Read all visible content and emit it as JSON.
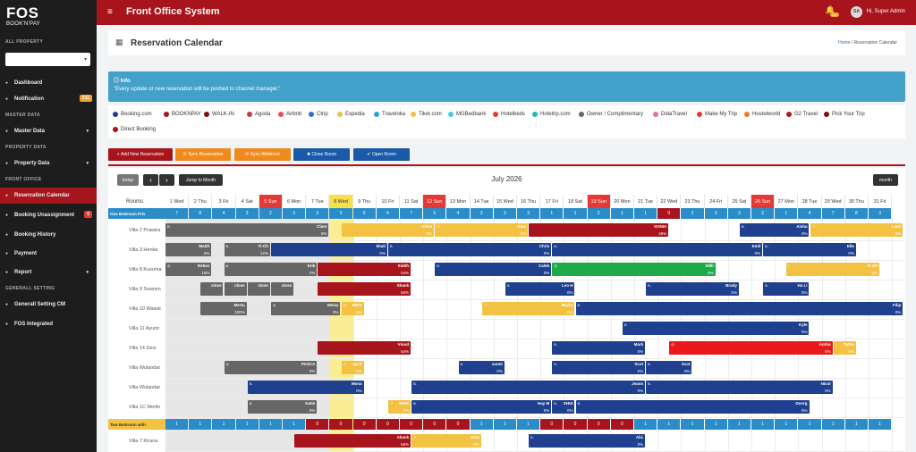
{
  "app": {
    "logo_top": "FOS",
    "logo_bottom": "BOOK'N'PAY",
    "title": "Front Office System",
    "bell_count": "211",
    "avatar": "SA",
    "user": "Hi, Super Admin"
  },
  "sidebar": {
    "all_property": "ALL PROPERTY",
    "master_data": "MASTER DATA",
    "property_data": "PROPERTY DATA",
    "front_office": "FRONT OFFICE",
    "general_setting": "GENERALL SETTING",
    "items": [
      {
        "label": "Dashboard",
        "icon": "dashboard-icon",
        "top": 84
      },
      {
        "label": "Notification",
        "icon": "bell-icon",
        "top": 102,
        "badge": "211"
      },
      {
        "label": "Master Data",
        "icon": "database-icon",
        "top": 138,
        "arrow": "▾"
      },
      {
        "label": "Property Data",
        "icon": "building-icon",
        "top": 174,
        "arrow": "▾"
      },
      {
        "label": "Reservation Calendar",
        "icon": "calendar-icon",
        "top": 210,
        "active": true
      },
      {
        "label": "Booking Unassignment",
        "icon": "booking-icon",
        "top": 232,
        "badge": "0",
        "badgered": true
      },
      {
        "label": "Booking History",
        "icon": "history-icon",
        "top": 254
      },
      {
        "label": "Payment",
        "icon": "payment-icon",
        "top": 275
      },
      {
        "label": "Report",
        "icon": "report-icon",
        "top": 296,
        "arrow": "▾"
      },
      {
        "label": "Generall Setting CM",
        "icon": "gear-icon",
        "top": 332
      },
      {
        "label": "FOS Integrated",
        "icon": "integration-icon",
        "top": 354
      }
    ]
  },
  "page": {
    "title": "Reservation Calendar",
    "crumb_home": "Home",
    "crumb_sep": "/",
    "crumb_current": "Reservation Calendar"
  },
  "info": {
    "title": "Info",
    "message": "\"Every update or new reservation will be pushed to channel manager.\""
  },
  "legend": [
    {
      "label": "Booking.com",
      "color": "#1f3f8f"
    },
    {
      "label": "BOOKNPAY",
      "color": "#a8141c"
    },
    {
      "label": "WALK-IN",
      "color": "#7a1010"
    },
    {
      "label": "Agoda",
      "color": "#cc3b3b"
    },
    {
      "label": "Airbnb",
      "color": "#e8505b"
    },
    {
      "label": "Ctrip",
      "color": "#2c6fd1"
    },
    {
      "label": "Expedia",
      "color": "#e8c34a"
    },
    {
      "label": "Traveloka",
      "color": "#2ba3e0"
    },
    {
      "label": "Tiket.com",
      "color": "#f3c242"
    },
    {
      "label": "MGBedbank",
      "color": "#46c7e8"
    },
    {
      "label": "Hotelbeds",
      "color": "#e03a3a"
    },
    {
      "label": "Hotelrip.com",
      "color": "#21b7b7"
    },
    {
      "label": "Owner / Complimentary",
      "color": "#666666"
    },
    {
      "label": "DidaTravel",
      "color": "#e86f9c"
    },
    {
      "label": "Make My Trip",
      "color": "#e53935"
    },
    {
      "label": "Hostelworld",
      "color": "#f07a2c"
    },
    {
      "label": "G2 Travel",
      "color": "#b01818"
    },
    {
      "label": "Pick Your Trip",
      "color": "#7a1010"
    },
    {
      "label": "Direct Booking",
      "color": "#a8141c"
    }
  ],
  "buttons": {
    "add": "Add New Reservation",
    "sync_res": "Sync Reservation",
    "sync_allot": "Sync Allotment",
    "close_room": "Close Room",
    "open_room": "Open Room"
  },
  "calendar": {
    "today": "today",
    "prev": "‹",
    "next": "›",
    "jump": "Jump to Month",
    "month_title": "July 2026",
    "view": "month",
    "rooms_header": "Rooms",
    "days": [
      "1 Wed",
      "2 Thu",
      "3 Fri",
      "4 Sat",
      "5 Sun",
      "6 Mon",
      "7 Tue",
      "8 Wed",
      "9 Thu",
      "10 Fri",
      "11 Sat",
      "12 Sun",
      "13 Mon",
      "14 Tue",
      "15 Wed",
      "16 Thu",
      "17 Fri",
      "18 Sat",
      "19 Sun",
      "20 Mon",
      "21 Tue",
      "22 Wed",
      "23 Thu",
      "24 Fri",
      "25 Sat",
      "26 Sun",
      "27 Mon",
      "28 Tue",
      "29 Wed",
      "30 Thu",
      "31 Fri"
    ],
    "sundays": [
      4,
      11,
      18,
      25
    ],
    "today_index": 7,
    "groups": [
      {
        "label": "One Bedroom Priv",
        "counts": [
          "7",
          "8",
          "4",
          "3",
          "2",
          "3",
          "3",
          "3",
          "5",
          "4",
          "7",
          "5",
          "4",
          "3",
          "3",
          "3",
          "1",
          "1",
          "2",
          "1",
          "1",
          "0",
          "2",
          "3",
          "3",
          "2",
          "1",
          "4",
          "7",
          "8",
          "3"
        ],
        "zero_color": "#a8141c"
      },
      {
        "label": "Two Bedroom with",
        "counts": [
          "1",
          "1",
          "1",
          "1",
          "1",
          "1",
          "0",
          "0",
          "0",
          "0",
          "0",
          "0",
          "0",
          "1",
          "1",
          "1",
          "0",
          "0",
          "0",
          "0",
          "1",
          "1",
          "1",
          "1",
          "1",
          "1",
          "1",
          "1",
          "1",
          "1",
          "1"
        ],
        "zero_color": "#a8141c",
        "group2": true
      }
    ],
    "rooms": [
      "Villa 2 Prawira",
      "Villa 3 Henka",
      "Villa 8 Kusuma",
      "Villa 9 Suwism",
      "Villa 10 Wasist",
      "Villa 11 Ayunir",
      "Villa 14 Devi",
      "Villa Wulandar",
      "Villa Wulandar",
      "Villa 1C Merlin",
      "Villa 7 Kirana"
    ],
    "bookings": [
      {
        "row": 0,
        "start": 0,
        "end": 7,
        "name": "Clare",
        "pct": "0%",
        "color": "#666666",
        "st": "B."
      },
      {
        "row": 0,
        "start": 7,
        "end": 11,
        "name": "Alexe",
        "pct": "0%",
        "color": "#f3c242",
        "st": "i"
      },
      {
        "row": 0,
        "start": 11,
        "end": 15,
        "name": "Dam",
        "pct": "0%",
        "color": "#f3c242",
        "st": "↗"
      },
      {
        "row": 0,
        "start": 15,
        "end": 21,
        "name": "SONIA",
        "pct": "46%",
        "color": "#a8141c",
        "st": ""
      },
      {
        "row": 0,
        "start": 24,
        "end": 27,
        "name": "Aisha",
        "pct": "0%",
        "color": "#1f3f8f",
        "st": "B."
      },
      {
        "row": 0,
        "start": 27,
        "end": 31,
        "name": "Lesh",
        "pct": "0%",
        "color": "#f3c242",
        "st": "↗"
      },
      {
        "row": 1,
        "start": 0,
        "end": 2,
        "name": "Matth",
        "pct": "0%",
        "color": "#666666",
        "st": ""
      },
      {
        "row": 1,
        "start": 2,
        "end": 4,
        "name": "Yi-Ch",
        "pct": "12%",
        "color": "#666666",
        "st": "B."
      },
      {
        "row": 1,
        "start": 4,
        "end": 9,
        "name": "khali",
        "pct": "0%",
        "color": "#1f3f8f",
        "st": ""
      },
      {
        "row": 1,
        "start": 9,
        "end": 16,
        "name": "Chris",
        "pct": "0%",
        "color": "#1f3f8f",
        "st": "B."
      },
      {
        "row": 1,
        "start": 16,
        "end": 25,
        "name": "Emil",
        "pct": "0%",
        "color": "#1f3f8f",
        "st": "B."
      },
      {
        "row": 1,
        "start": 25,
        "end": 29,
        "name": "Elle",
        "pct": "0%",
        "color": "#1f3f8f",
        "st": "B."
      },
      {
        "row": 2,
        "start": 0,
        "end": 2,
        "name": "Rebec",
        "pct": "15%",
        "color": "#666666",
        "st": "◎"
      },
      {
        "row": 2,
        "start": 2,
        "end": 6,
        "name": "Erik",
        "pct": "2%",
        "color": "#666666",
        "st": "B."
      },
      {
        "row": 2,
        "start": 6,
        "end": 10,
        "name": "Siddh",
        "pct": "54%",
        "color": "#a8141c",
        "st": ""
      },
      {
        "row": 2,
        "start": 11,
        "end": 16,
        "name": "Caleb",
        "pct": "0%",
        "color": "#1f3f8f",
        "st": "B."
      },
      {
        "row": 2,
        "start": 16,
        "end": 23,
        "name": "Willi",
        "pct": "0%",
        "color": "#1faa4a",
        "st": "◎"
      },
      {
        "row": 2,
        "start": 26,
        "end": 30,
        "name": "YI ZO",
        "pct": "0%",
        "color": "#f3c242",
        "st": "i"
      },
      {
        "row": 3,
        "start": 1,
        "end": 2,
        "name": "close",
        "pct": "",
        "color": "#666666",
        "st": ""
      },
      {
        "row": 3,
        "start": 2,
        "end": 3,
        "name": "close",
        "pct": "",
        "color": "#666666",
        "st": ""
      },
      {
        "row": 3,
        "start": 3,
        "end": 4,
        "name": "close",
        "pct": "",
        "color": "#666666",
        "st": ""
      },
      {
        "row": 3,
        "start": 4,
        "end": 5,
        "name": "close",
        "pct": "",
        "color": "#666666",
        "st": ""
      },
      {
        "row": 3,
        "start": 6,
        "end": 10,
        "name": "Shank",
        "pct": "50%",
        "color": "#a8141c",
        "st": ""
      },
      {
        "row": 3,
        "start": 14,
        "end": 17,
        "name": "Leo H",
        "pct": "0%",
        "color": "#1f3f8f",
        "st": "B."
      },
      {
        "row": 3,
        "start": 20,
        "end": 24,
        "name": "Brady",
        "pct": "0%",
        "color": "#1f3f8f",
        "st": "B."
      },
      {
        "row": 3,
        "start": 25,
        "end": 27,
        "name": "Ha Li",
        "pct": "0%",
        "color": "#1f3f8f",
        "st": "B."
      },
      {
        "row": 4,
        "start": 1,
        "end": 3,
        "name": "Mertu",
        "pct": "100%",
        "color": "#666666",
        "st": ""
      },
      {
        "row": 4,
        "start": 4,
        "end": 7,
        "name": "Meisy",
        "pct": "0%",
        "color": "#666666",
        "st": "◎"
      },
      {
        "row": 4,
        "start": 7,
        "end": 8,
        "name": "Mehr",
        "pct": "0%",
        "color": "#f3c242",
        "st": "◎"
      },
      {
        "row": 4,
        "start": 13,
        "end": 17,
        "name": "Micha",
        "pct": "0%",
        "color": "#f3c242",
        "st": "↗"
      },
      {
        "row": 4,
        "start": 17,
        "end": 31,
        "name": "Filip",
        "pct": "0%",
        "color": "#1f3f8f",
        "st": "B."
      },
      {
        "row": 5,
        "start": 19,
        "end": 27,
        "name": "Kyle",
        "pct": "0%",
        "color": "#1f3f8f",
        "st": "B."
      },
      {
        "row": 6,
        "start": 6,
        "end": 10,
        "name": "Vinod",
        "pct": "54%",
        "color": "#a8141c",
        "st": ""
      },
      {
        "row": 6,
        "start": 16,
        "end": 20,
        "name": "Mark",
        "pct": "0%",
        "color": "#1f3f8f",
        "st": "B."
      },
      {
        "row": 6,
        "start": 21,
        "end": 28,
        "name": "Antho",
        "pct": "0%",
        "color": "#e8181c",
        "st": "◎"
      },
      {
        "row": 6,
        "start": 28,
        "end": 29,
        "name": "Tutha",
        "pct": "0%",
        "color": "#f3c242",
        "st": "i"
      },
      {
        "row": 7,
        "start": 2,
        "end": 6,
        "name": "PASCA",
        "pct": "0%",
        "color": "#666666",
        "st": "◎"
      },
      {
        "row": 7,
        "start": 7,
        "end": 8,
        "name": "ayi ti",
        "pct": "0%",
        "color": "#f3c242",
        "st": "↗"
      },
      {
        "row": 7,
        "start": 12,
        "end": 14,
        "name": "sumit",
        "pct": "0%",
        "color": "#1f3f8f",
        "st": "B."
      },
      {
        "row": 7,
        "start": 16,
        "end": 20,
        "name": "Scot",
        "pct": "0%",
        "color": "#1f3f8f",
        "st": "B."
      },
      {
        "row": 7,
        "start": 20,
        "end": 22,
        "name": "Scot",
        "pct": "0%",
        "color": "#1f3f8f",
        "st": "B."
      },
      {
        "row": 8,
        "start": 3,
        "end": 8,
        "name": "Mona",
        "pct": "0%",
        "color": "#1f3f8f",
        "st": "B."
      },
      {
        "row": 8,
        "start": 10,
        "end": 20,
        "name": "Jeann",
        "pct": "0%",
        "color": "#1f3f8f",
        "st": "B."
      },
      {
        "row": 8,
        "start": 20,
        "end": 28,
        "name": "Nicol",
        "pct": "0%",
        "color": "#1f3f8f",
        "st": "B."
      },
      {
        "row": 9,
        "start": 3,
        "end": 6,
        "name": "Katie",
        "pct": "0%",
        "color": "#666666",
        "st": "B."
      },
      {
        "row": 9,
        "start": 9,
        "end": 10,
        "name": "RHIS",
        "pct": "0%",
        "color": "#f3c242",
        "st": "↗"
      },
      {
        "row": 9,
        "start": 10,
        "end": 16,
        "name": "Hay M",
        "pct": "0%",
        "color": "#1f3f8f",
        "st": "B."
      },
      {
        "row": 9,
        "start": 16,
        "end": 17,
        "name": "SHUI",
        "pct": "0%",
        "color": "#1f3f8f",
        "st": "B."
      },
      {
        "row": 9,
        "start": 17,
        "end": 27,
        "name": "Georg",
        "pct": "0%",
        "color": "#1f3f8f",
        "st": "B."
      },
      {
        "row": 10,
        "start": 5,
        "end": 10,
        "name": "Akank",
        "pct": "55%",
        "color": "#a8141c",
        "st": ""
      },
      {
        "row": 10,
        "start": 10,
        "end": 13,
        "name": "Jemi",
        "pct": "0%",
        "color": "#f3c242",
        "st": "↗"
      },
      {
        "row": 10,
        "start": 15,
        "end": 20,
        "name": "Alic",
        "pct": "0%",
        "color": "#1f3f8f",
        "st": "B."
      }
    ]
  }
}
